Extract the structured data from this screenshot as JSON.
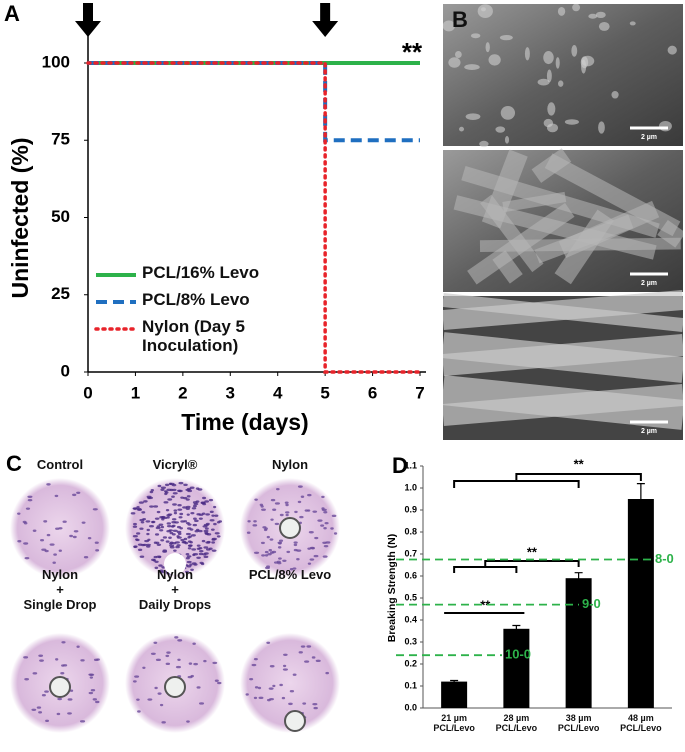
{
  "panel_labels": [
    "A",
    "B",
    "C",
    "D"
  ],
  "chart_data": [
    {
      "type": "line",
      "xlabel": "Time (days)",
      "ylabel": "Uninfected (%)",
      "xlim": [
        0,
        7
      ],
      "xticks": [
        0,
        1,
        2,
        3,
        4,
        5,
        6,
        7
      ],
      "ylim": [
        0,
        100
      ],
      "yticks": [
        0,
        25,
        50,
        75,
        100
      ],
      "legend": "lower left",
      "annotation": "**",
      "arrows_x": [
        0,
        5
      ],
      "series": [
        {
          "name": "PCL/16% Levo",
          "color": "#2db24a",
          "style": "solid",
          "x": [
            0,
            7
          ],
          "values": [
            100,
            100
          ]
        },
        {
          "name": "PCL/8% Levo",
          "color": "#1f6fc0",
          "style": "dashed",
          "x": [
            0,
            5,
            5,
            7
          ],
          "values": [
            100,
            100,
            75,
            75
          ]
        },
        {
          "name": "Nylon (Day 5 Inoculation)",
          "color": "#e8232a",
          "style": "dotted",
          "x": [
            0,
            5,
            5,
            7
          ],
          "values": [
            100,
            100,
            0,
            0
          ]
        }
      ]
    },
    {
      "type": "bar",
      "ylabel": "Breaking Strength (N)",
      "categories": [
        "21 µm PCL/Levo",
        "28 µm PCL/Levo",
        "38 µm PCL/Levo",
        "48 µm PCL/Levo"
      ],
      "values": [
        0.12,
        0.36,
        0.59,
        0.95
      ],
      "errors": [
        0.005,
        0.015,
        0.025,
        0.07
      ],
      "color": "#000000",
      "ylim": [
        0,
        1.1
      ],
      "yticks": [
        {
          "value": 0,
          "label": "0.0"
        },
        0.1,
        0.2,
        0.3,
        0.4,
        0.5,
        0.6,
        0.7,
        0.8,
        0.9,
        {
          "value": 1,
          "label": "1.0"
        },
        1.1
      ],
      "reference_lines": [
        {
          "value": 0.24,
          "label": "10-0"
        },
        {
          "value": 0.47,
          "label": "9-0"
        },
        {
          "value": 0.675,
          "label": "8-0"
        }
      ],
      "reference_color": "#2db24a",
      "significance": [
        "**",
        "**",
        "**"
      ]
    }
  ],
  "micrographs": {
    "scale_bars": [
      "2 µm",
      "2 µm",
      "2 µm"
    ]
  },
  "histology": [
    {
      "lines": [
        "Control"
      ]
    },
    {
      "lines": [
        "Vicryl®"
      ]
    },
    {
      "lines": [
        "Nylon"
      ]
    },
    {
      "lines": [
        "Nylon",
        "+",
        "Single Drop"
      ]
    },
    {
      "lines": [
        "Nylon",
        "+",
        "Daily Drops"
      ]
    },
    {
      "lines": [
        "PCL/8% Levo"
      ]
    }
  ]
}
